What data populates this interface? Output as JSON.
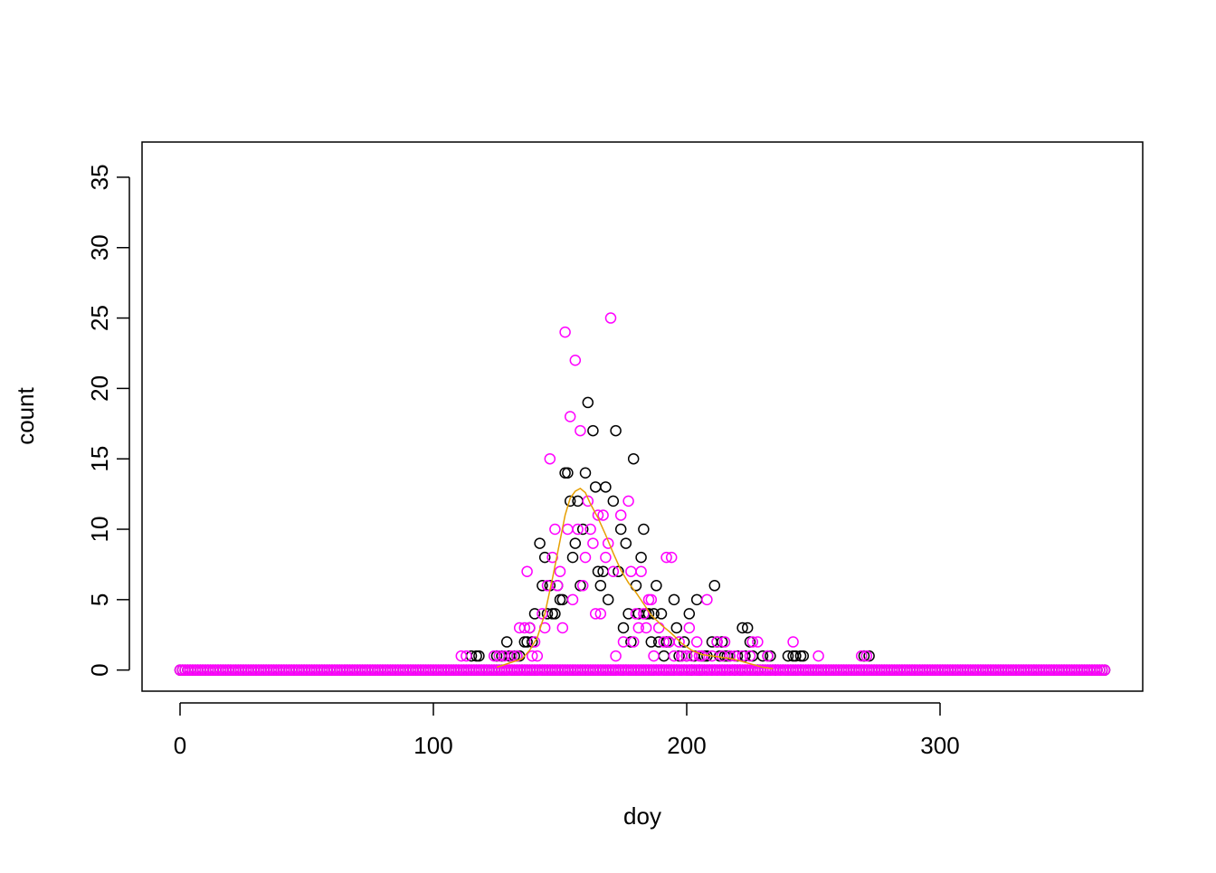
{
  "chart_data": {
    "type": "scatter",
    "title": "",
    "xlabel": "doy",
    "ylabel": "count",
    "xlim": [
      -15,
      380
    ],
    "ylim": [
      -1.5,
      37.5
    ],
    "x_ticks": [
      0,
      100,
      200,
      300
    ],
    "y_ticks": [
      0,
      5,
      10,
      15,
      20,
      25,
      30,
      35
    ],
    "x_tick_labels": [
      "0",
      "100",
      "200",
      "300"
    ],
    "y_tick_labels": [
      "0",
      "5",
      "10",
      "15",
      "20",
      "25",
      "30",
      "35"
    ],
    "grid": false,
    "legend": "none",
    "colors": {
      "observed": "#000000",
      "predicted": "#ff00ff",
      "smooth": "#e69f00"
    },
    "series": [
      {
        "style": "points",
        "color": "#000000",
        "zero_range": [
          0,
          365
        ],
        "points": [
          [
            115,
            1
          ],
          [
            117,
            1
          ],
          [
            118,
            1
          ],
          [
            125,
            1
          ],
          [
            127,
            1
          ],
          [
            129,
            2
          ],
          [
            130,
            1
          ],
          [
            132,
            1
          ],
          [
            133,
            1
          ],
          [
            134,
            1
          ],
          [
            136,
            2
          ],
          [
            137,
            2
          ],
          [
            138,
            3
          ],
          [
            139,
            2
          ],
          [
            140,
            4
          ],
          [
            142,
            9
          ],
          [
            143,
            6
          ],
          [
            144,
            8
          ],
          [
            145,
            4
          ],
          [
            146,
            6
          ],
          [
            147,
            4
          ],
          [
            148,
            4
          ],
          [
            149,
            6
          ],
          [
            150,
            5
          ],
          [
            151,
            5
          ],
          [
            152,
            14
          ],
          [
            153,
            14
          ],
          [
            154,
            12
          ],
          [
            155,
            8
          ],
          [
            156,
            9
          ],
          [
            157,
            12
          ],
          [
            158,
            6
          ],
          [
            159,
            10
          ],
          [
            160,
            14
          ],
          [
            161,
            19
          ],
          [
            163,
            17
          ],
          [
            164,
            13
          ],
          [
            165,
            7
          ],
          [
            166,
            6
          ],
          [
            167,
            7
          ],
          [
            168,
            13
          ],
          [
            169,
            5
          ],
          [
            171,
            12
          ],
          [
            172,
            17
          ],
          [
            173,
            7
          ],
          [
            174,
            10
          ],
          [
            175,
            3
          ],
          [
            176,
            9
          ],
          [
            177,
            4
          ],
          [
            178,
            2
          ],
          [
            179,
            15
          ],
          [
            180,
            6
          ],
          [
            181,
            4
          ],
          [
            182,
            8
          ],
          [
            183,
            10
          ],
          [
            184,
            4
          ],
          [
            185,
            4
          ],
          [
            186,
            2
          ],
          [
            187,
            4
          ],
          [
            188,
            6
          ],
          [
            189,
            2
          ],
          [
            190,
            4
          ],
          [
            191,
            1
          ],
          [
            192,
            2
          ],
          [
            193,
            2
          ],
          [
            195,
            5
          ],
          [
            196,
            3
          ],
          [
            197,
            1
          ],
          [
            198,
            1
          ],
          [
            199,
            2
          ],
          [
            200,
            1
          ],
          [
            201,
            4
          ],
          [
            202,
            0
          ],
          [
            203,
            1
          ],
          [
            204,
            5
          ],
          [
            205,
            0
          ],
          [
            206,
            1
          ],
          [
            207,
            1
          ],
          [
            208,
            1
          ],
          [
            210,
            2
          ],
          [
            211,
            6
          ],
          [
            212,
            2
          ],
          [
            213,
            1
          ],
          [
            214,
            2
          ],
          [
            215,
            1
          ],
          [
            216,
            1
          ],
          [
            217,
            1
          ],
          [
            219,
            0
          ],
          [
            220,
            1
          ],
          [
            221,
            0
          ],
          [
            222,
            3
          ],
          [
            223,
            1
          ],
          [
            224,
            3
          ],
          [
            225,
            2
          ],
          [
            226,
            1
          ],
          [
            228,
            0
          ],
          [
            230,
            1
          ],
          [
            232,
            1
          ],
          [
            233,
            1
          ],
          [
            235,
            0
          ],
          [
            240,
            1
          ],
          [
            242,
            1
          ],
          [
            243,
            1
          ],
          [
            245,
            1
          ],
          [
            246,
            1
          ],
          [
            270,
            1
          ],
          [
            272,
            1
          ]
        ]
      },
      {
        "style": "points",
        "color": "#ff00ff",
        "zero_range": [
          0,
          365
        ],
        "points": [
          [
            111,
            1
          ],
          [
            113,
            1
          ],
          [
            124,
            1
          ],
          [
            126,
            1
          ],
          [
            128,
            1
          ],
          [
            130,
            0
          ],
          [
            131,
            1
          ],
          [
            133,
            1
          ],
          [
            134,
            3
          ],
          [
            135,
            0
          ],
          [
            136,
            3
          ],
          [
            137,
            7
          ],
          [
            138,
            3
          ],
          [
            139,
            1
          ],
          [
            140,
            2
          ],
          [
            141,
            1
          ],
          [
            142,
            0
          ],
          [
            143,
            4
          ],
          [
            144,
            3
          ],
          [
            145,
            6
          ],
          [
            146,
            15
          ],
          [
            147,
            8
          ],
          [
            148,
            10
          ],
          [
            149,
            6
          ],
          [
            150,
            7
          ],
          [
            151,
            3
          ],
          [
            152,
            24
          ],
          [
            153,
            10
          ],
          [
            154,
            18
          ],
          [
            155,
            5
          ],
          [
            156,
            22
          ],
          [
            157,
            10
          ],
          [
            158,
            17
          ],
          [
            159,
            6
          ],
          [
            160,
            8
          ],
          [
            161,
            12
          ],
          [
            162,
            10
          ],
          [
            163,
            9
          ],
          [
            164,
            4
          ],
          [
            165,
            11
          ],
          [
            166,
            4
          ],
          [
            167,
            11
          ],
          [
            168,
            8
          ],
          [
            169,
            9
          ],
          [
            170,
            25
          ],
          [
            171,
            7
          ],
          [
            172,
            1
          ],
          [
            173,
            0
          ],
          [
            174,
            11
          ],
          [
            175,
            2
          ],
          [
            176,
            0
          ],
          [
            177,
            12
          ],
          [
            178,
            7
          ],
          [
            179,
            2
          ],
          [
            180,
            4
          ],
          [
            181,
            3
          ],
          [
            182,
            7
          ],
          [
            183,
            4
          ],
          [
            184,
            3
          ],
          [
            185,
            5
          ],
          [
            186,
            5
          ],
          [
            187,
            1
          ],
          [
            188,
            0
          ],
          [
            189,
            3
          ],
          [
            190,
            0
          ],
          [
            191,
            2
          ],
          [
            192,
            8
          ],
          [
            193,
            2
          ],
          [
            194,
            8
          ],
          [
            195,
            1
          ],
          [
            196,
            0
          ],
          [
            197,
            2
          ],
          [
            198,
            1
          ],
          [
            199,
            0
          ],
          [
            200,
            1
          ],
          [
            201,
            3
          ],
          [
            202,
            1
          ],
          [
            203,
            0
          ],
          [
            204,
            2
          ],
          [
            205,
            1
          ],
          [
            206,
            1
          ],
          [
            207,
            0
          ],
          [
            208,
            5
          ],
          [
            209,
            0
          ],
          [
            210,
            1
          ],
          [
            211,
            0
          ],
          [
            212,
            2
          ],
          [
            213,
            0
          ],
          [
            214,
            1
          ],
          [
            215,
            2
          ],
          [
            216,
            0
          ],
          [
            217,
            1
          ],
          [
            218,
            0
          ],
          [
            219,
            1
          ],
          [
            220,
            0
          ],
          [
            222,
            1
          ],
          [
            223,
            0
          ],
          [
            225,
            1
          ],
          [
            226,
            2
          ],
          [
            228,
            2
          ],
          [
            230,
            0
          ],
          [
            232,
            1
          ],
          [
            234,
            0
          ],
          [
            236,
            0
          ],
          [
            238,
            0
          ],
          [
            242,
            2
          ],
          [
            245,
            0
          ],
          [
            252,
            1
          ],
          [
            269,
            1
          ],
          [
            271,
            1
          ]
        ]
      },
      {
        "style": "line",
        "color": "#e69f00",
        "points": [
          [
            125,
            0.2
          ],
          [
            130,
            0.5
          ],
          [
            135,
            0.8
          ],
          [
            138,
            1.4
          ],
          [
            141,
            2.3
          ],
          [
            144,
            4
          ],
          [
            147,
            6.5
          ],
          [
            150,
            9.2
          ],
          [
            152,
            11
          ],
          [
            154,
            12.2
          ],
          [
            156,
            12.7
          ],
          [
            158,
            12.9
          ],
          [
            160,
            12.6
          ],
          [
            162,
            11.8
          ],
          [
            165,
            10.8
          ],
          [
            168,
            9.6
          ],
          [
            171,
            8.3
          ],
          [
            174,
            7.1
          ],
          [
            177,
            6.2
          ],
          [
            180,
            5.5
          ],
          [
            183,
            4.7
          ],
          [
            186,
            3.9
          ],
          [
            190,
            3.2
          ],
          [
            194,
            2.6
          ],
          [
            198,
            1.9
          ],
          [
            202,
            1.4
          ],
          [
            206,
            1.1
          ],
          [
            210,
            1
          ],
          [
            214,
            0.9
          ],
          [
            218,
            0.8
          ],
          [
            222,
            0.6
          ],
          [
            226,
            0.4
          ],
          [
            230,
            0.2
          ],
          [
            234,
            0.1
          ]
        ]
      }
    ]
  }
}
